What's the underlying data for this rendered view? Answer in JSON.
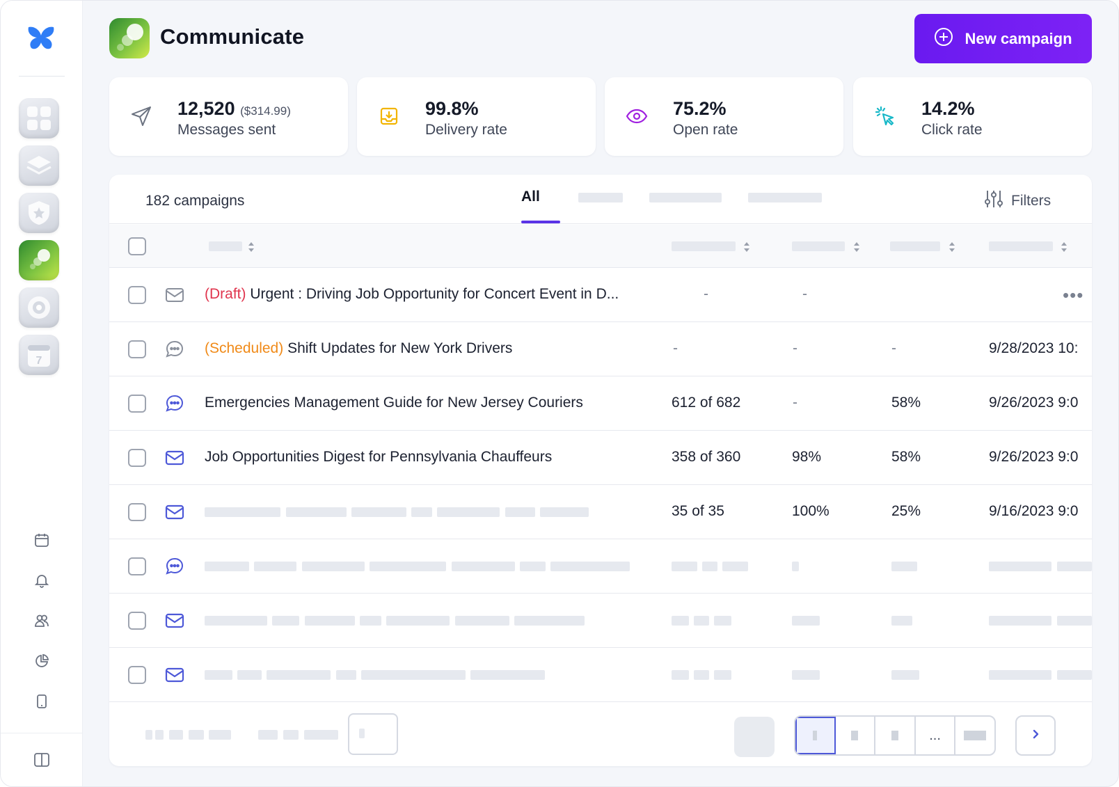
{
  "header": {
    "title": "Communicate",
    "new_button": "New campaign"
  },
  "stats": [
    {
      "value": "12,520",
      "sub": "($314.99)",
      "label": "Messages sent",
      "icon": "send-icon"
    },
    {
      "value": "99.8%",
      "sub": "",
      "label": "Delivery rate",
      "icon": "inbox-download-icon"
    },
    {
      "value": "75.2%",
      "sub": "",
      "label": "Open rate",
      "icon": "eye-icon"
    },
    {
      "value": "14.2%",
      "sub": "",
      "label": "Click rate",
      "icon": "cursor-click-icon"
    }
  ],
  "table": {
    "count": "182 campaigns",
    "tab_all": "All",
    "filters": "Filters",
    "rows": [
      {
        "type": "email",
        "prefix": "(Draft)",
        "name": "Urgent : Driving Job Opportunity for Concert Event in D...",
        "sent": "-",
        "delivery": "-",
        "open": "",
        "date": ""
      },
      {
        "type": "sms",
        "prefix": "(Scheduled)",
        "name": "Shift Updates for New York Drivers",
        "sent": "-",
        "delivery": "-",
        "open": "-",
        "date": "9/28/2023 10:"
      },
      {
        "type": "sms",
        "prefix": "",
        "name": "Emergencies Management Guide for New Jersey Couriers",
        "sent": "612 of 682",
        "delivery": "-",
        "open": "58%",
        "date": "9/26/2023 9:0"
      },
      {
        "type": "email",
        "prefix": "",
        "name": "Job Opportunities Digest for Pennsylvania Chauffeurs",
        "sent": "358 of 360",
        "delivery": "98%",
        "open": "58%",
        "date": "9/26/2023 9:0"
      },
      {
        "type": "email",
        "prefix": "",
        "name": "",
        "sent": "35 of 35",
        "delivery": "100%",
        "open": "25%",
        "date": "9/16/2023 9:0"
      }
    ],
    "more": "•••"
  },
  "pagination": {
    "ellipsis": "..."
  },
  "colors": {
    "accent": "#6a1af0",
    "draft": "#e0354e",
    "scheduled": "#f08a18",
    "icon_blue": "#4d58d8"
  }
}
